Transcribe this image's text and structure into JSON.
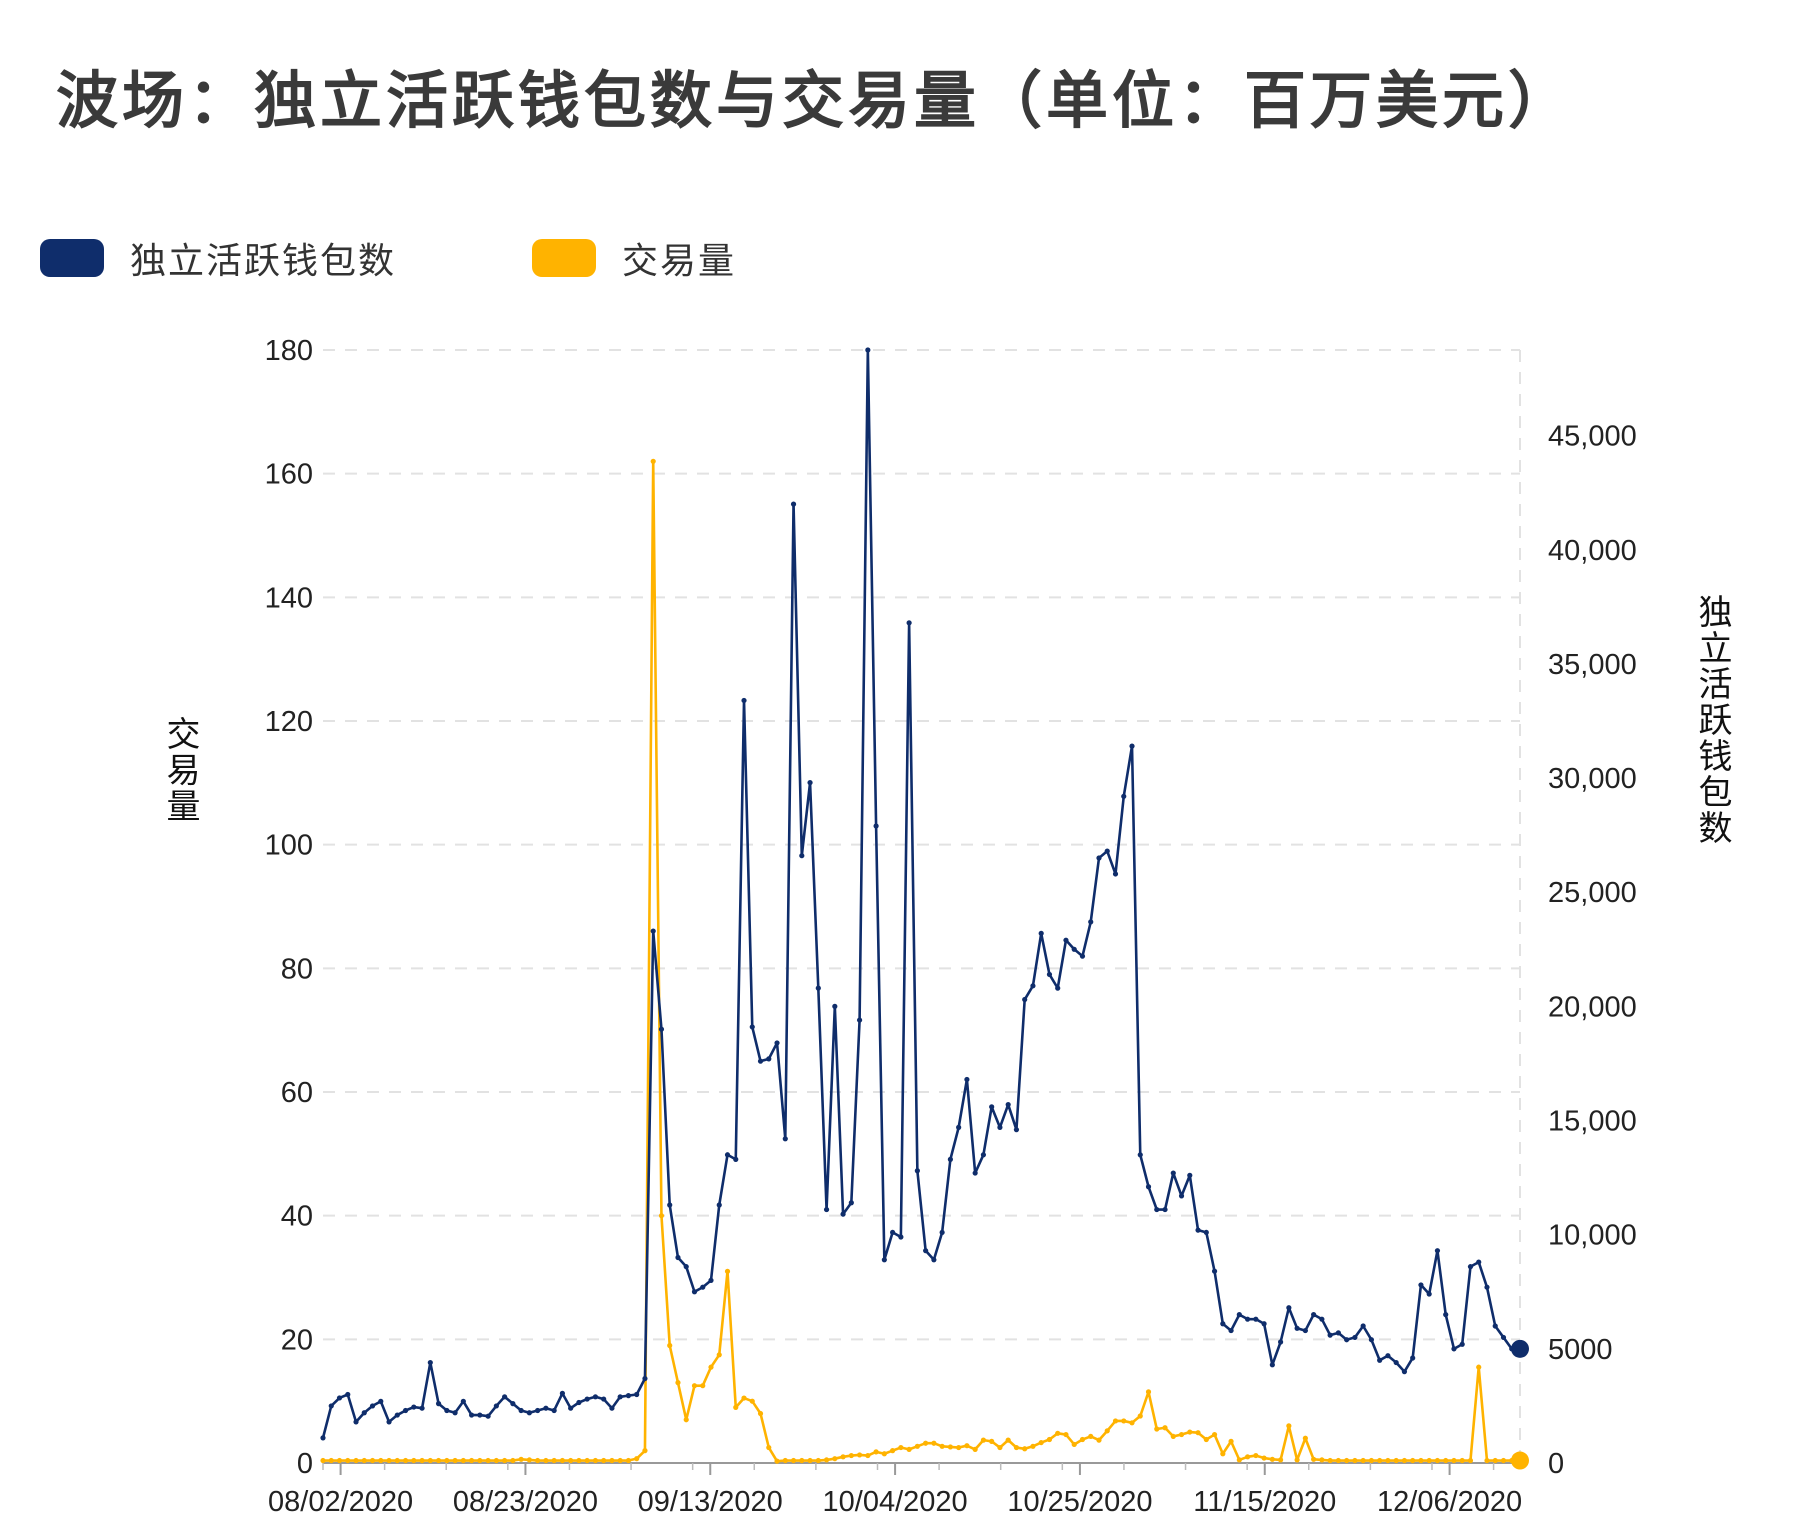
{
  "title": "波场：独立活跃钱包数与交易量（单位：百万美元）",
  "legend": {
    "wallets_label": "独立活跃钱包数",
    "volume_label": "交易量"
  },
  "colors": {
    "wallets": "#0f2d6b",
    "volume": "#ffb300",
    "grid": "#e2e2e2"
  },
  "chart_data": {
    "type": "line",
    "title": "波场：独立活跃钱包数与交易量（单位：百万美元）",
    "xlabel": "",
    "left_axis": {
      "label": "交易量",
      "range": [
        0,
        180
      ],
      "ticks": [
        0,
        20,
        40,
        60,
        80,
        100,
        120,
        140,
        160,
        180
      ]
    },
    "right_axis": {
      "label": "独立活跃钱包数",
      "range": [
        0,
        48750
      ],
      "ticks": [
        0,
        5000,
        10000,
        15000,
        20000,
        25000,
        30000,
        35000,
        40000,
        45000
      ],
      "tick_labels": [
        "0",
        "5000",
        "10,000",
        "15,000",
        "20,000",
        "25,000",
        "30,000",
        "35,000",
        "40,000",
        "45,000"
      ]
    },
    "x_tick_labels": [
      "08/02/2020",
      "08/23/2020",
      "09/13/2020",
      "10/04/2020",
      "10/25/2020",
      "11/15/2020",
      "12/06/2020"
    ],
    "x_start_date": "2020-07-31",
    "x_end_date": "2020-12-14",
    "grid": true,
    "legend_position": "top-left",
    "series": [
      {
        "name": "独立活跃钱包数",
        "axis": "right",
        "values": [
          1100,
          2500,
          2850,
          3000,
          1800,
          2200,
          2500,
          2700,
          1800,
          2100,
          2300,
          2450,
          2400,
          4400,
          2600,
          2300,
          2200,
          2700,
          2100,
          2100,
          2050,
          2500,
          2900,
          2600,
          2300,
          2200,
          2300,
          2400,
          2300,
          3050,
          2400,
          2650,
          2800,
          2900,
          2800,
          2400,
          2900,
          2950,
          3000,
          3700,
          23300,
          19000,
          11300,
          9000,
          8600,
          7500,
          7700,
          8000,
          11300,
          13500,
          13300,
          33400,
          19100,
          17600,
          17700,
          18400,
          14200,
          42000,
          26600,
          29800,
          20800,
          11100,
          20000,
          10900,
          11400,
          19400,
          48750,
          27900,
          8900,
          10100,
          9900,
          36800,
          12800,
          9300,
          8900,
          10100,
          13300,
          14700,
          16800,
          12700,
          13500,
          15600,
          14700,
          15700,
          14600,
          20300,
          20900,
          23200,
          21400,
          20800,
          22900,
          22500,
          22200,
          23700,
          26500,
          26800,
          25800,
          29200,
          31400,
          13500,
          12100,
          11100,
          11100,
          12700,
          11700,
          12600,
          10200,
          10100,
          8400,
          6100,
          5800,
          6500,
          6300,
          6300,
          6100,
          4300,
          5300,
          6800,
          5900,
          5800,
          6500,
          6300,
          5600,
          5700,
          5400,
          5500,
          6000,
          5400,
          4500,
          4700,
          4400,
          4000,
          4600,
          7800,
          7400,
          9300,
          6500,
          5000,
          5200,
          8600,
          8800,
          7700,
          6000,
          5500,
          5000,
          5000
        ]
      },
      {
        "name": "交易量",
        "axis": "left",
        "values": [
          0.4,
          0.4,
          0.4,
          0.4,
          0.4,
          0.4,
          0.4,
          0.4,
          0.4,
          0.4,
          0.4,
          0.4,
          0.4,
          0.4,
          0.4,
          0.4,
          0.4,
          0.4,
          0.4,
          0.4,
          0.4,
          0.4,
          0.4,
          0.4,
          0.6,
          0.5,
          0.4,
          0.4,
          0.4,
          0.4,
          0.4,
          0.4,
          0.4,
          0.4,
          0.4,
          0.4,
          0.4,
          0.4,
          0.7,
          2,
          162,
          40,
          19,
          13,
          7,
          12.5,
          12.5,
          15.5,
          17.5,
          31,
          9,
          10.5,
          10,
          8,
          2.5,
          0.3,
          0.4,
          0.4,
          0.4,
          0.4,
          0.4,
          0.5,
          0.7,
          1,
          1.2,
          1.3,
          1.2,
          1.8,
          1.5,
          2,
          2.5,
          2.2,
          2.7,
          3.2,
          3.2,
          2.7,
          2.6,
          2.5,
          2.8,
          2.2,
          3.7,
          3.5,
          2.5,
          3.7,
          2.5,
          2.3,
          2.7,
          3.3,
          3.8,
          4.8,
          4.6,
          3,
          3.8,
          4.3,
          3.7,
          5.2,
          6.8,
          6.8,
          6.5,
          7.6,
          11.5,
          5.5,
          5.7,
          4.3,
          4.6,
          5,
          4.9,
          3.8,
          4.6,
          1.5,
          3.5,
          0.5,
          1,
          1.2,
          0.8,
          0.6,
          0.5,
          6,
          0.5,
          4,
          0.6,
          0.5,
          0.4,
          0.4,
          0.4,
          0.4,
          0.4,
          0.4,
          0.4,
          0.4,
          0.4,
          0.4,
          0.4,
          0.4,
          0.4,
          0.4,
          0.4,
          0.4,
          0.4,
          0.4,
          15.5,
          0.4,
          0.4,
          0.4,
          0.4,
          0.4
        ]
      }
    ]
  }
}
